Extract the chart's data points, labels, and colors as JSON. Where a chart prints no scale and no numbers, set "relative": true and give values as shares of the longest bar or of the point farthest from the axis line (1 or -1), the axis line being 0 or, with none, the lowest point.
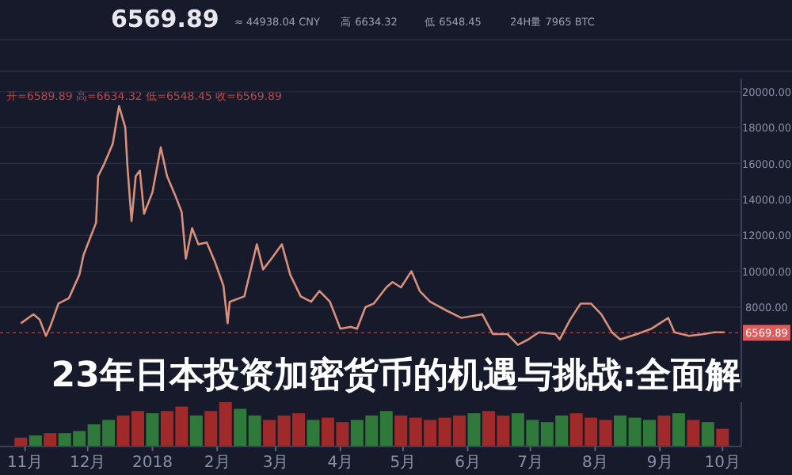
{
  "chart_data": [
    {
      "type": "line",
      "title": "23年日本投资加密货币的机遇与挑战:全面解",
      "annotations": [
        "6569.89",
        "≈ 44938.04 CNY",
        "高 6634.32",
        "低 6548.45",
        "24H量 7965 BTC",
        "开=6589.89 高=6634.32 低=6548.45 收=6569.89"
      ],
      "xlim": [
        "2017-10-20",
        "2018-10-10"
      ],
      "ylim": [
        3500,
        20700
      ],
      "yticks": [
        {
          "value": 8000,
          "label": "8000.00"
        },
        {
          "value": 10000,
          "label": "10000.00"
        },
        {
          "value": 12000,
          "label": "12000.00"
        },
        {
          "value": 14000,
          "label": "14000.00"
        },
        {
          "value": 16000,
          "label": "16000.00"
        },
        {
          "value": 18000,
          "label": "18000.00"
        },
        {
          "value": 20000,
          "label": "20000.00"
        }
      ],
      "grid": true,
      "tick_labels": "y",
      "ref_lines": [
        {
          "axis": "y",
          "value": 6569.89,
          "label": "6569.89",
          "color": "#e05a5a"
        }
      ],
      "series": [
        {
          "color": "#d9907a",
          "x": [
            "2017-10-30",
            "2017-11-05",
            "2017-11-08",
            "2017-11-11",
            "2017-11-13",
            "2017-11-17",
            "2017-11-22",
            "2017-11-27",
            "2017-11-29",
            "2017-12-02",
            "2017-12-05",
            "2017-12-06",
            "2017-12-09",
            "2017-12-13",
            "2017-12-16",
            "2017-12-19",
            "2017-12-20",
            "2017-12-22",
            "2017-12-24",
            "2017-12-26",
            "2017-12-28",
            "2018-01-01",
            "2018-01-05",
            "2018-01-08",
            "2018-01-12",
            "2018-01-15",
            "2018-01-17",
            "2018-01-20",
            "2018-01-23",
            "2018-01-27",
            "2018-01-31",
            "2018-02-04",
            "2018-02-06",
            "2018-02-07",
            "2018-02-14",
            "2018-02-20",
            "2018-02-23",
            "2018-02-27",
            "2018-03-04",
            "2018-03-08",
            "2018-03-13",
            "2018-03-18",
            "2018-03-22",
            "2018-03-27",
            "2018-04-01",
            "2018-04-06",
            "2018-04-09",
            "2018-04-13",
            "2018-04-17",
            "2018-04-23",
            "2018-04-26",
            "2018-04-30",
            "2018-05-05",
            "2018-05-09",
            "2018-05-14",
            "2018-05-22",
            "2018-05-29",
            "2018-06-08",
            "2018-06-13",
            "2018-06-20",
            "2018-06-25",
            "2018-06-30",
            "2018-07-05",
            "2018-07-13",
            "2018-07-15",
            "2018-07-20",
            "2018-07-25",
            "2018-07-30",
            "2018-08-04",
            "2018-08-09",
            "2018-08-13",
            "2018-08-21",
            "2018-08-28",
            "2018-09-05",
            "2018-09-08",
            "2018-09-15",
            "2018-09-22",
            "2018-09-27",
            "2018-10-02"
          ],
          "values": [
            7100,
            7600,
            7300,
            6400,
            6900,
            8200,
            8500,
            9800,
            10900,
            11800,
            12700,
            15300,
            16000,
            17100,
            19200,
            18000,
            15900,
            12800,
            15300,
            15600,
            13200,
            14400,
            16900,
            15300,
            14200,
            13300,
            10700,
            12400,
            11500,
            11600,
            10500,
            9200,
            7100,
            8300,
            8600,
            11500,
            10100,
            10700,
            11500,
            9800,
            8600,
            8300,
            8900,
            8300,
            6800,
            6900,
            6800,
            8000,
            8200,
            9100,
            9400,
            9100,
            10000,
            8900,
            8300,
            7800,
            7400,
            7600,
            6500,
            6500,
            5900,
            6200,
            6600,
            6500,
            6200,
            7300,
            8200,
            8200,
            7600,
            6600,
            6200,
            6500,
            6800,
            7400,
            6600,
            6400,
            6500,
            6600,
            6600
          ]
        }
      ]
    },
    {
      "type": "bar",
      "relative": true,
      "tick_labels": "x",
      "xlim": [
        "2017-10-20",
        "2018-10-10"
      ],
      "xticks": [
        {
          "value": "2017-11-01",
          "label": "11月"
        },
        {
          "value": "2017-12-01",
          "label": "12月"
        },
        {
          "value": "2018-01-01",
          "label": "2018"
        },
        {
          "value": "2018-02-01",
          "label": "2月"
        },
        {
          "value": "2018-03-01",
          "label": "3月"
        },
        {
          "value": "2018-04-01",
          "label": "4月"
        },
        {
          "value": "2018-05-01",
          "label": "5月"
        },
        {
          "value": "2018-06-01",
          "label": "6月"
        },
        {
          "value": "2018-07-01",
          "label": "7月"
        },
        {
          "value": "2018-08-01",
          "label": "8月"
        },
        {
          "value": "2018-09-01",
          "label": "9月"
        },
        {
          "value": "2018-10-01",
          "label": "10月"
        }
      ],
      "x": [
        "2017-10-30",
        "2017-11-06",
        "2017-11-13",
        "2017-11-20",
        "2017-11-27",
        "2017-12-04",
        "2017-12-11",
        "2017-12-18",
        "2017-12-25",
        "2018-01-01",
        "2018-01-08",
        "2018-01-15",
        "2018-01-22",
        "2018-01-29",
        "2018-02-05",
        "2018-02-12",
        "2018-02-19",
        "2018-02-26",
        "2018-03-05",
        "2018-03-12",
        "2018-03-19",
        "2018-03-26",
        "2018-04-02",
        "2018-04-09",
        "2018-04-16",
        "2018-04-23",
        "2018-04-30",
        "2018-05-07",
        "2018-05-14",
        "2018-05-21",
        "2018-05-28",
        "2018-06-04",
        "2018-06-11",
        "2018-06-18",
        "2018-06-25",
        "2018-07-02",
        "2018-07-09",
        "2018-07-16",
        "2018-07-23",
        "2018-07-30",
        "2018-08-06",
        "2018-08-13",
        "2018-08-20",
        "2018-08-27",
        "2018-09-03",
        "2018-09-10",
        "2018-09-17",
        "2018-09-24",
        "2018-10-01"
      ],
      "values": [
        0.2,
        0.25,
        0.3,
        0.3,
        0.35,
        0.5,
        0.6,
        0.7,
        0.8,
        0.75,
        0.8,
        0.9,
        0.7,
        0.8,
        1,
        0.85,
        0.7,
        0.6,
        0.7,
        0.75,
        0.6,
        0.65,
        0.55,
        0.6,
        0.7,
        0.8,
        0.7,
        0.65,
        0.6,
        0.65,
        0.7,
        0.75,
        0.8,
        0.7,
        0.75,
        0.6,
        0.55,
        0.7,
        0.75,
        0.65,
        0.6,
        0.7,
        0.65,
        0.6,
        0.7,
        0.75,
        0.6,
        0.55,
        0.4
      ],
      "colors": [
        "#a02a2a",
        "#2f7a3a",
        "#a02a2a",
        "#2f7a3a",
        "#2f7a3a",
        "#2f7a3a",
        "#2f7a3a",
        "#a02a2a",
        "#a02a2a",
        "#2f7a3a",
        "#a02a2a",
        "#a02a2a",
        "#2f7a3a",
        "#a02a2a",
        "#a02a2a",
        "#2f7a3a",
        "#2f7a3a",
        "#a02a2a",
        "#a02a2a",
        "#a02a2a",
        "#2f7a3a",
        "#a02a2a",
        "#a02a2a",
        "#2f7a3a",
        "#2f7a3a",
        "#2f7a3a",
        "#a02a2a",
        "#a02a2a",
        "#a02a2a",
        "#a02a2a",
        "#a02a2a",
        "#2f7a3a",
        "#a02a2a",
        "#a02a2a",
        "#2f7a3a",
        "#2f7a3a",
        "#2f7a3a",
        "#2f7a3a",
        "#a02a2a",
        "#a02a2a",
        "#a02a2a",
        "#2f7a3a",
        "#2f7a3a",
        "#2f7a3a",
        "#a02a2a",
        "#2f7a3a",
        "#a02a2a",
        "#2f7a3a",
        "#a02a2a"
      ]
    }
  ]
}
